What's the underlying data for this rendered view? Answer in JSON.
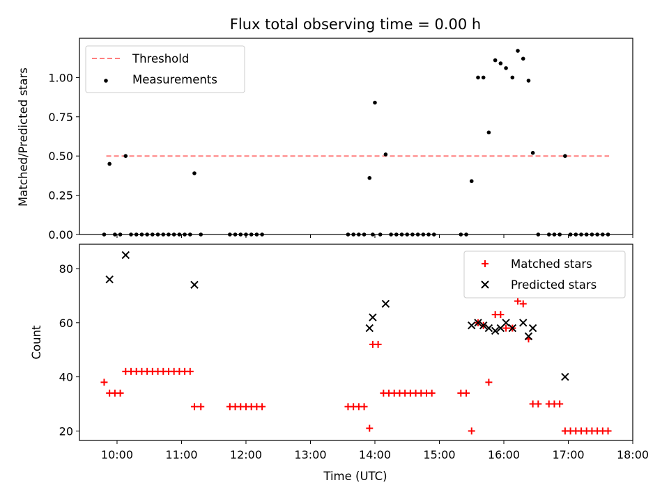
{
  "figure": {
    "title": "Flux total observing time = 0.00 h",
    "xlabel": "Time (UTC)"
  },
  "colors": {
    "threshold": "#ff7f7f",
    "measurements": "#000000",
    "matched": "#ff0000",
    "predicted": "#000000"
  },
  "chart_data": [
    {
      "type": "scatter",
      "panel": "top",
      "ylabel": "Matched/Predicted stars",
      "xlim": [
        "09:25",
        "18:00"
      ],
      "ylim": [
        0,
        1.25
      ],
      "yticks": [
        "0.00",
        "0.25",
        "0.50",
        "0.75",
        "1.00"
      ],
      "legend": {
        "position": "upper left",
        "entries": [
          "Threshold",
          "Measurements"
        ]
      },
      "threshold": {
        "name": "Threshold",
        "value": 0.5,
        "x_start": "09:50",
        "x_end": "17:38"
      },
      "series": [
        {
          "name": "Measurements",
          "points": [
            [
              "09:48",
              0
            ],
            [
              "09:53",
              0.45
            ],
            [
              "09:58",
              0
            ],
            [
              "10:03",
              0
            ],
            [
              "10:08",
              0.5
            ],
            [
              "10:13",
              0
            ],
            [
              "10:18",
              0
            ],
            [
              "10:23",
              0
            ],
            [
              "10:28",
              0
            ],
            [
              "10:33",
              0
            ],
            [
              "10:38",
              0
            ],
            [
              "10:43",
              0
            ],
            [
              "10:48",
              0
            ],
            [
              "10:53",
              0
            ],
            [
              "10:58",
              0
            ],
            [
              "11:03",
              0
            ],
            [
              "11:08",
              0
            ],
            [
              "11:12",
              0.39
            ],
            [
              "11:18",
              0
            ],
            [
              "11:45",
              0
            ],
            [
              "11:50",
              0
            ],
            [
              "11:55",
              0
            ],
            [
              "12:00",
              0
            ],
            [
              "12:05",
              0
            ],
            [
              "12:10",
              0
            ],
            [
              "12:15",
              0
            ],
            [
              "13:35",
              0
            ],
            [
              "13:40",
              0
            ],
            [
              "13:45",
              0
            ],
            [
              "13:50",
              0
            ],
            [
              "13:55",
              0.36
            ],
            [
              "13:58",
              0
            ],
            [
              "14:00",
              0.84
            ],
            [
              "14:05",
              0
            ],
            [
              "14:10",
              0.51
            ],
            [
              "14:15",
              0
            ],
            [
              "14:20",
              0
            ],
            [
              "14:25",
              0
            ],
            [
              "14:30",
              0
            ],
            [
              "14:35",
              0
            ],
            [
              "14:40",
              0
            ],
            [
              "14:45",
              0
            ],
            [
              "14:50",
              0
            ],
            [
              "14:55",
              0
            ],
            [
              "15:20",
              0
            ],
            [
              "15:25",
              0
            ],
            [
              "15:30",
              0.34
            ],
            [
              "15:36",
              1.0
            ],
            [
              "15:41",
              1.0
            ],
            [
              "15:46",
              0.65
            ],
            [
              "15:52",
              1.11
            ],
            [
              "15:57",
              1.09
            ],
            [
              "16:02",
              1.06
            ],
            [
              "16:08",
              1.0
            ],
            [
              "16:13",
              1.17
            ],
            [
              "16:18",
              1.12
            ],
            [
              "16:23",
              0.98
            ],
            [
              "16:27",
              0.52
            ],
            [
              "16:32",
              0
            ],
            [
              "16:42",
              0
            ],
            [
              "16:47",
              0
            ],
            [
              "16:52",
              0
            ],
            [
              "16:57",
              0.5
            ],
            [
              "17:02",
              0
            ],
            [
              "17:07",
              0
            ],
            [
              "17:12",
              0
            ],
            [
              "17:17",
              0
            ],
            [
              "17:22",
              0
            ],
            [
              "17:27",
              0
            ],
            [
              "17:32",
              0
            ],
            [
              "17:37",
              0
            ]
          ]
        }
      ]
    },
    {
      "type": "scatter",
      "panel": "bottom",
      "ylabel": "Count",
      "xlim": [
        "09:25",
        "18:00"
      ],
      "ylim": [
        16.5,
        89
      ],
      "yticks": [
        "20",
        "40",
        "60",
        "80"
      ],
      "xticks": [
        "10:00",
        "11:00",
        "12:00",
        "13:00",
        "14:00",
        "15:00",
        "16:00",
        "17:00",
        "18:00"
      ],
      "legend": {
        "position": "upper right",
        "entries": [
          "Matched stars",
          "Predicted stars"
        ]
      },
      "series": [
        {
          "name": "Matched stars",
          "marker": "plus",
          "points": [
            [
              "09:48",
              38
            ],
            [
              "09:53",
              34
            ],
            [
              "09:58",
              34
            ],
            [
              "10:03",
              34
            ],
            [
              "10:08",
              42
            ],
            [
              "10:13",
              42
            ],
            [
              "10:18",
              42
            ],
            [
              "10:23",
              42
            ],
            [
              "10:28",
              42
            ],
            [
              "10:33",
              42
            ],
            [
              "10:38",
              42
            ],
            [
              "10:43",
              42
            ],
            [
              "10:48",
              42
            ],
            [
              "10:53",
              42
            ],
            [
              "10:58",
              42
            ],
            [
              "11:03",
              42
            ],
            [
              "11:08",
              42
            ],
            [
              "11:12",
              29
            ],
            [
              "11:18",
              29
            ],
            [
              "11:45",
              29
            ],
            [
              "11:50",
              29
            ],
            [
              "11:55",
              29
            ],
            [
              "12:00",
              29
            ],
            [
              "12:05",
              29
            ],
            [
              "12:10",
              29
            ],
            [
              "12:15",
              29
            ],
            [
              "13:35",
              29
            ],
            [
              "13:40",
              29
            ],
            [
              "13:45",
              29
            ],
            [
              "13:50",
              29
            ],
            [
              "13:55",
              21
            ],
            [
              "13:58",
              52
            ],
            [
              "14:03",
              52
            ],
            [
              "14:08",
              34
            ],
            [
              "14:13",
              34
            ],
            [
              "14:18",
              34
            ],
            [
              "14:23",
              34
            ],
            [
              "14:28",
              34
            ],
            [
              "14:33",
              34
            ],
            [
              "14:38",
              34
            ],
            [
              "14:43",
              34
            ],
            [
              "14:48",
              34
            ],
            [
              "14:53",
              34
            ],
            [
              "15:20",
              34
            ],
            [
              "15:25",
              34
            ],
            [
              "15:30",
              20
            ],
            [
              "15:36",
              60
            ],
            [
              "15:41",
              59
            ],
            [
              "15:46",
              38
            ],
            [
              "15:52",
              63
            ],
            [
              "15:57",
              63
            ],
            [
              "16:02",
              58
            ],
            [
              "16:08",
              58
            ],
            [
              "16:13",
              68
            ],
            [
              "16:18",
              67
            ],
            [
              "16:23",
              54
            ],
            [
              "16:27",
              30
            ],
            [
              "16:32",
              30
            ],
            [
              "16:42",
              30
            ],
            [
              "16:47",
              30
            ],
            [
              "16:52",
              30
            ],
            [
              "16:57",
              20
            ],
            [
              "17:02",
              20
            ],
            [
              "17:07",
              20
            ],
            [
              "17:12",
              20
            ],
            [
              "17:17",
              20
            ],
            [
              "17:22",
              20
            ],
            [
              "17:27",
              20
            ],
            [
              "17:32",
              20
            ],
            [
              "17:37",
              20
            ]
          ]
        },
        {
          "name": "Predicted stars",
          "marker": "x",
          "points": [
            [
              "09:53",
              76
            ],
            [
              "10:08",
              85
            ],
            [
              "11:12",
              74
            ],
            [
              "13:55",
              58
            ],
            [
              "13:58",
              62
            ],
            [
              "14:10",
              67
            ],
            [
              "15:30",
              59
            ],
            [
              "15:36",
              60
            ],
            [
              "15:41",
              59
            ],
            [
              "15:46",
              58
            ],
            [
              "15:52",
              57
            ],
            [
              "15:57",
              58
            ],
            [
              "16:02",
              60
            ],
            [
              "16:08",
              58
            ],
            [
              "16:18",
              60
            ],
            [
              "16:23",
              55
            ],
            [
              "16:27",
              58
            ],
            [
              "16:57",
              40
            ]
          ]
        }
      ]
    }
  ]
}
